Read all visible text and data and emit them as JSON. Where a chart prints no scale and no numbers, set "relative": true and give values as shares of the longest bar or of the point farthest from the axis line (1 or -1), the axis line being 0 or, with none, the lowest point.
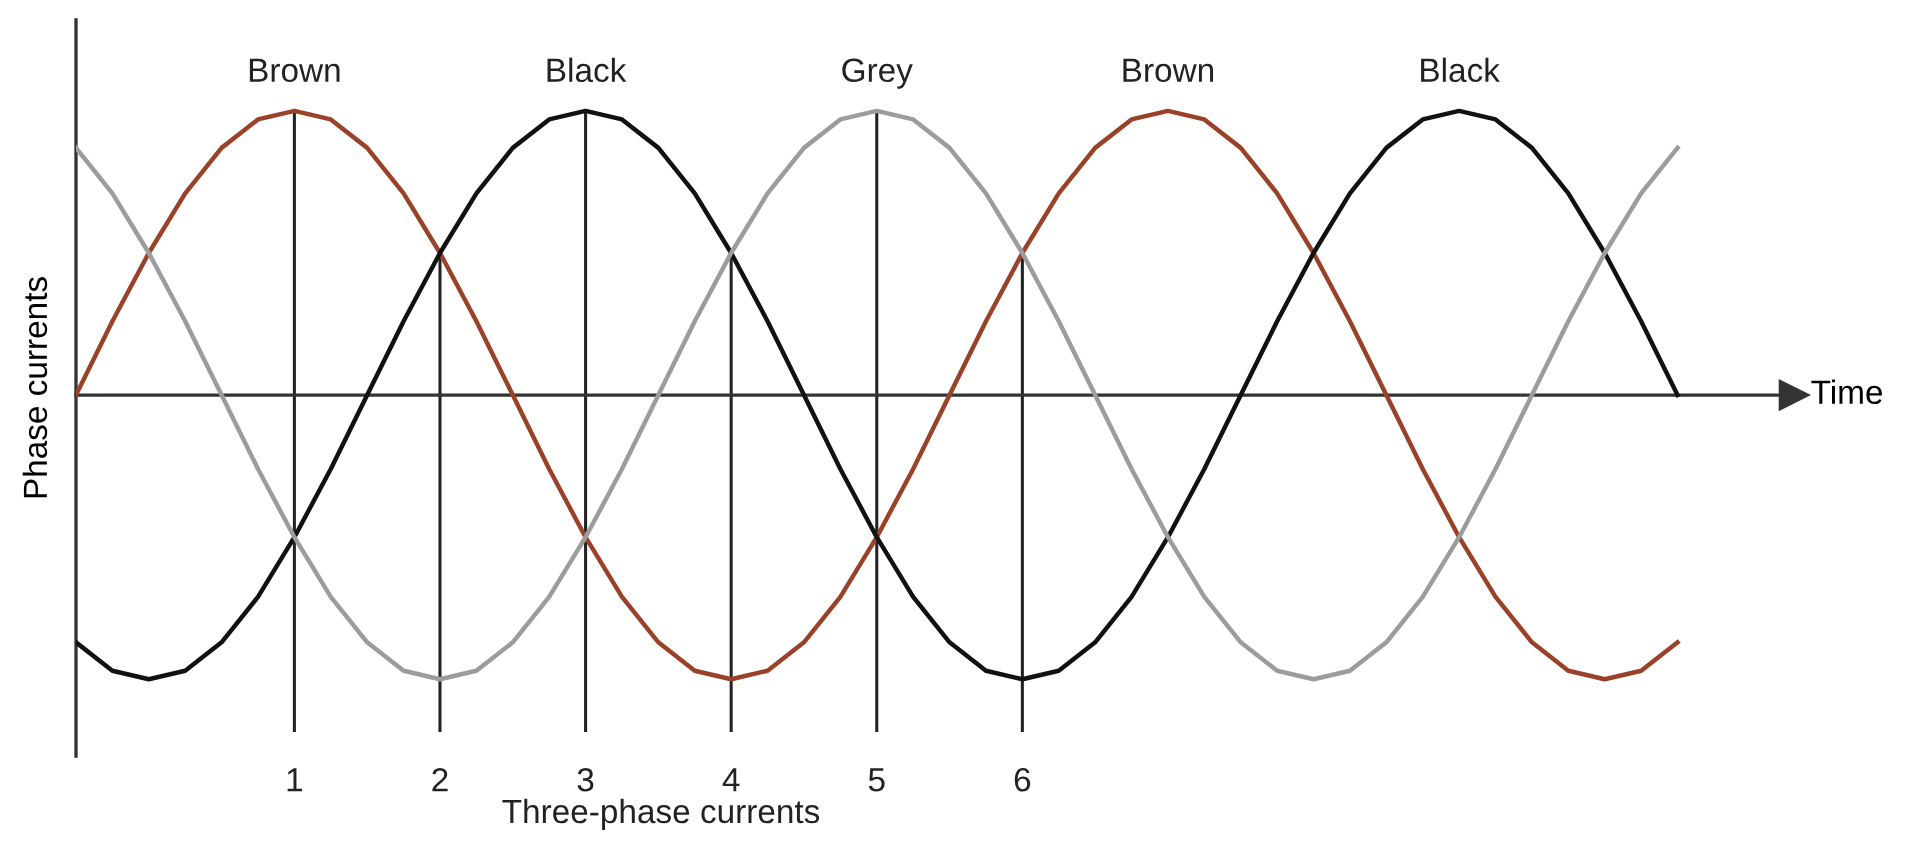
{
  "chart_data": {
    "type": "line",
    "relative": true,
    "xlabel": "Time",
    "ylabel": "Phase currents",
    "x": [
      -0.5,
      -0.25,
      0,
      0.25,
      0.5,
      0.75,
      1,
      1.25,
      1.5,
      1.75,
      2,
      2.25,
      2.5,
      2.75,
      3,
      3.25,
      3.5,
      3.75,
      4,
      4.25,
      4.5,
      4.75,
      5,
      5.25,
      5.5,
      5.75,
      6,
      6.25,
      6.5,
      6.75,
      7,
      7.25,
      7.5,
      7.75,
      8,
      8.25,
      8.5,
      8.75,
      9,
      9.25,
      9.5,
      9.75,
      10,
      10.25,
      10.5
    ],
    "xlim": [
      -0.5,
      11.3
    ],
    "xticks": [
      1,
      2,
      3,
      4,
      5,
      6
    ],
    "series": [
      {
        "color": "#9a4229",
        "values": [
          0,
          0.26,
          0.5,
          0.71,
          0.87,
          0.97,
          1,
          0.97,
          0.87,
          0.71,
          0.5,
          0.26,
          0,
          -0.26,
          -0.5,
          -0.71,
          -0.87,
          -0.97,
          -1,
          -0.97,
          -0.87,
          -0.71,
          -0.5,
          -0.26,
          0,
          0.26,
          0.5,
          0.71,
          0.87,
          0.97,
          1,
          0.97,
          0.87,
          0.71,
          0.5,
          0.26,
          0,
          -0.26,
          -0.5,
          -0.71,
          -0.87,
          -0.97,
          -1,
          -0.97,
          -0.87
        ]
      },
      {
        "color": "#111111",
        "values": [
          -0.87,
          -0.97,
          -1,
          -0.97,
          -0.87,
          -0.71,
          -0.5,
          -0.26,
          0,
          0.26,
          0.5,
          0.71,
          0.87,
          0.97,
          1,
          0.97,
          0.87,
          0.71,
          0.5,
          0.26,
          0,
          -0.26,
          -0.5,
          -0.71,
          -0.87,
          -0.97,
          -1,
          -0.97,
          -0.87,
          -0.71,
          -0.5,
          -0.26,
          0,
          0.26,
          0.5,
          0.71,
          0.87,
          0.97,
          1,
          0.97,
          0.87,
          0.71,
          0.5,
          0.26,
          0
        ]
      },
      {
        "color": "#9c9c9c",
        "values": [
          0.87,
          0.71,
          0.5,
          0.26,
          0,
          -0.26,
          -0.5,
          -0.71,
          -0.87,
          -0.97,
          -1,
          -0.97,
          -0.87,
          -0.71,
          -0.5,
          -0.26,
          0,
          0.26,
          0.5,
          0.71,
          0.87,
          0.97,
          1,
          0.97,
          0.87,
          0.71,
          0.5,
          0.26,
          0,
          -0.26,
          -0.5,
          -0.71,
          -0.87,
          -0.97,
          -1,
          -0.97,
          -0.87,
          -0.71,
          -0.5,
          -0.26,
          0,
          0.26,
          0.5,
          0.71,
          0.87
        ]
      }
    ],
    "ref_lines": [
      {
        "axis": "x",
        "value": 1,
        "color": "#222222"
      },
      {
        "axis": "x",
        "value": 2,
        "color": "#222222"
      },
      {
        "axis": "x",
        "value": 3,
        "color": "#222222"
      },
      {
        "axis": "x",
        "value": 4,
        "color": "#222222"
      },
      {
        "axis": "x",
        "value": 5,
        "color": "#222222"
      },
      {
        "axis": "x",
        "value": 6,
        "color": "#222222"
      }
    ],
    "annotations": [
      {
        "text": "Brown",
        "x": 1,
        "y": 1
      },
      {
        "text": "Black",
        "x": 3,
        "y": 1
      },
      {
        "text": "Grey",
        "x": 5,
        "y": 1
      },
      {
        "text": "Brown",
        "x": 7,
        "y": 1
      },
      {
        "text": "Black",
        "x": 9,
        "y": 1
      },
      "Three-phase currents"
    ],
    "grid": false,
    "legend": false,
    "line_style": "solid"
  }
}
